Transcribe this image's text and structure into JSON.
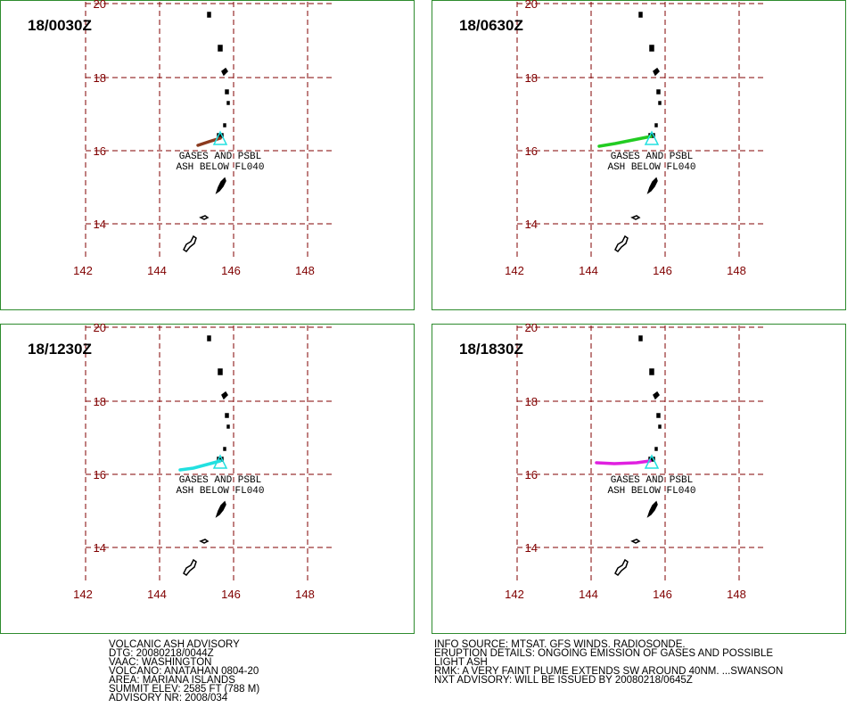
{
  "panels": [
    {
      "time": "18/0030Z",
      "plume_color": "#8b3a1e"
    },
    {
      "time": "18/0630Z",
      "plume_color": "#22cc22"
    },
    {
      "time": "18/1230Z",
      "plume_color": "#22e0e0"
    },
    {
      "time": "18/1830Z",
      "plume_color": "#e020e0"
    }
  ],
  "latitudes": [
    "20",
    "18",
    "16",
    "14"
  ],
  "longitudes": [
    "142",
    "144",
    "146",
    "148"
  ],
  "annotation": [
    "GASES AND PSBL",
    "ASH BELOW FL040"
  ],
  "footer_left": [
    "VOLCANIC ASH ADVISORY",
    "DTG: 20080218/0044Z",
    "VAAC: WASHINGTON",
    "VOLCANO: ANATAHAN 0804-20",
    "AREA: MARIANA ISLANDS",
    "SUMMIT ELEV: 2585 FT (788 M)",
    "ADVISORY NR: 2008/034"
  ],
  "footer_right": [
    "INFO SOURCE: MTSAT. GFS WINDS. RADIOSONDE.",
    "ERUPTION DETAILS: ONGOING EMISSION OF GASES AND POSSIBLE",
    "LIGHT ASH",
    "RMK: A VERY FAINT PLUME EXTENDS SW AROUND 40NM. ...SWANSON",
    "NXT ADVISORY: WILL BE ISSUED BY 20080218/0645Z"
  ]
}
